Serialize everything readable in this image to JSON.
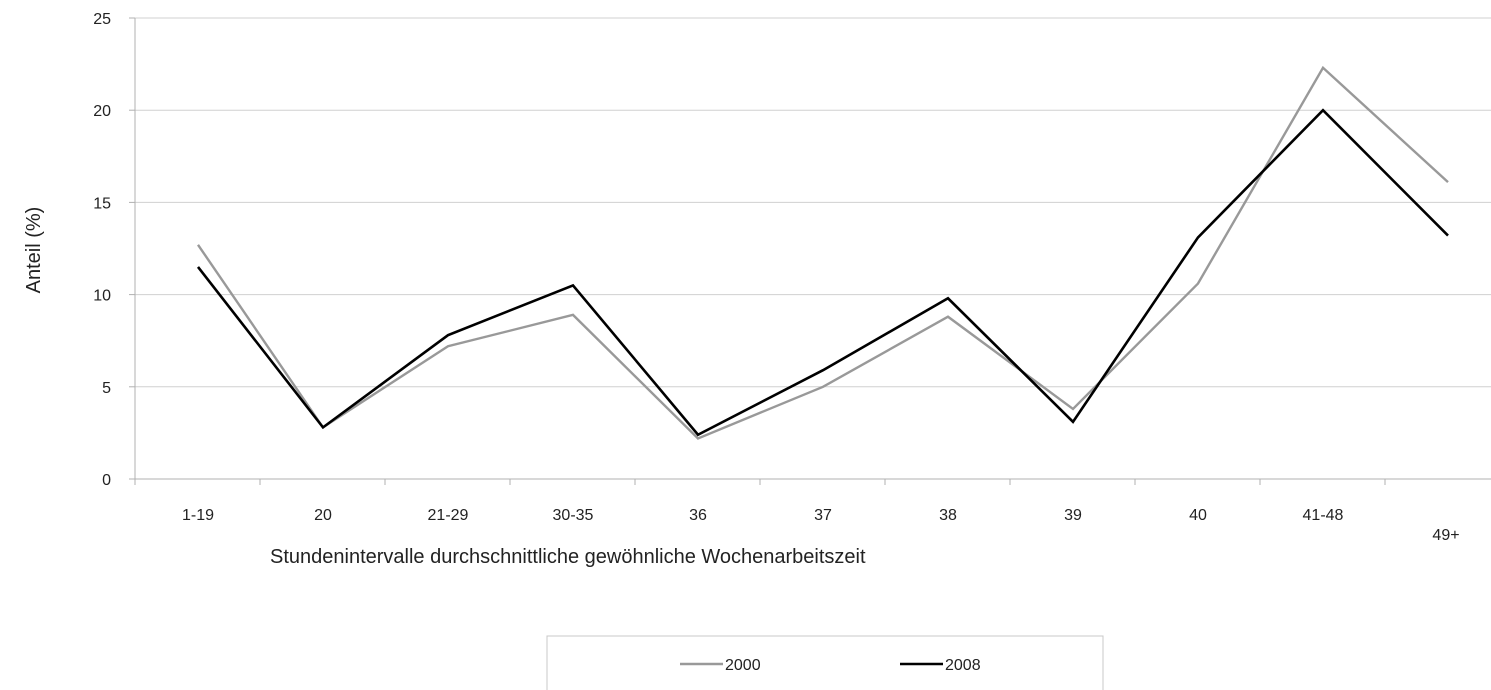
{
  "chart_data": {
    "type": "line",
    "title": "",
    "xlabel": "Stundenintervalle durchschnittliche gewöhnliche Wochenarbeitszeit",
    "ylabel": "Anteil (%)",
    "ylim": [
      0,
      25
    ],
    "yticks": [
      "0",
      "5",
      "10",
      "15",
      "20",
      "25"
    ],
    "categories": [
      "1-19",
      "20",
      "21-29",
      "30-35",
      "36",
      "37",
      "38",
      "39",
      "40",
      "41-48",
      "49+"
    ],
    "series": [
      {
        "name": "2000",
        "color": "#999999",
        "values": [
          12.7,
          2.8,
          7.2,
          8.9,
          2.2,
          5.0,
          8.8,
          3.8,
          10.6,
          22.3,
          16.1
        ]
      },
      {
        "name": "2008",
        "color": "#000000",
        "values": [
          11.5,
          2.8,
          7.8,
          10.5,
          2.4,
          5.9,
          9.8,
          3.1,
          13.1,
          20.0,
          13.2
        ]
      }
    ],
    "grid": true,
    "legend_position": "bottom"
  }
}
